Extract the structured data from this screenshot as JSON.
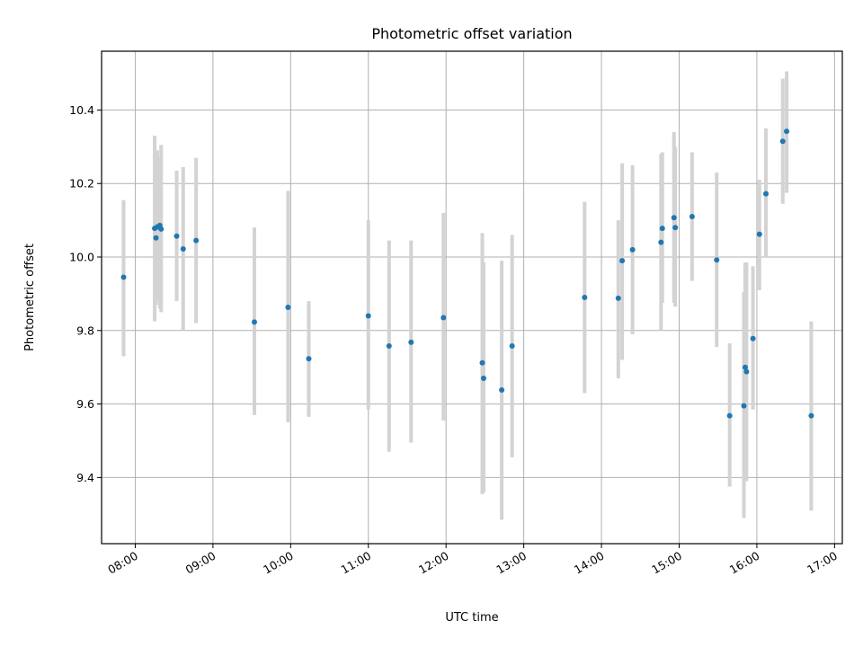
{
  "chart_data": {
    "type": "scatter",
    "title": "Photometric offset variation",
    "xlabel": "UTC time",
    "ylabel": "Photometric offset",
    "xlim": [
      "07:34",
      "17:06"
    ],
    "ylim": [
      9.22,
      10.56
    ],
    "x_ticks": [
      "08:00",
      "09:00",
      "10:00",
      "11:00",
      "12:00",
      "13:00",
      "14:00",
      "15:00",
      "16:00",
      "17:00"
    ],
    "y_ticks": [
      9.4,
      9.6,
      9.8,
      10.0,
      10.2,
      10.4
    ],
    "y_tick_labels": [
      "9.4",
      "9.6",
      "9.8",
      "10.0",
      "10.2",
      "10.4"
    ],
    "grid": true,
    "marker_color": "#1f77b4",
    "errorbar_color": "#d3d3d3",
    "points": [
      {
        "x": "07:51",
        "y": 9.945,
        "lo": 9.73,
        "hi": 10.155
      },
      {
        "x": "08:15",
        "y": 10.078,
        "lo": 9.825,
        "hi": 10.33
      },
      {
        "x": "08:16",
        "y": 10.052,
        "lo": 9.87,
        "hi": 10.235
      },
      {
        "x": "08:17",
        "y": 10.082,
        "lo": 9.88,
        "hi": 10.29
      },
      {
        "x": "08:19",
        "y": 10.086,
        "lo": 9.86,
        "hi": 10.27
      },
      {
        "x": "08:20",
        "y": 10.076,
        "lo": 9.85,
        "hi": 10.305
      },
      {
        "x": "08:32",
        "y": 10.057,
        "lo": 9.88,
        "hi": 10.235
      },
      {
        "x": "08:37",
        "y": 10.022,
        "lo": 9.8,
        "hi": 10.245
      },
      {
        "x": "08:47",
        "y": 10.045,
        "lo": 9.82,
        "hi": 10.27
      },
      {
        "x": "09:32",
        "y": 9.823,
        "lo": 9.57,
        "hi": 10.08
      },
      {
        "x": "09:58",
        "y": 9.863,
        "lo": 9.55,
        "hi": 10.18
      },
      {
        "x": "10:14",
        "y": 9.723,
        "lo": 9.565,
        "hi": 9.88
      },
      {
        "x": "11:00",
        "y": 9.84,
        "lo": 9.585,
        "hi": 10.1
      },
      {
        "x": "11:16",
        "y": 9.758,
        "lo": 9.47,
        "hi": 10.045
      },
      {
        "x": "11:33",
        "y": 9.768,
        "lo": 9.495,
        "hi": 10.045
      },
      {
        "x": "11:58",
        "y": 9.835,
        "lo": 9.555,
        "hi": 10.12
      },
      {
        "x": "12:28",
        "y": 9.712,
        "lo": 9.355,
        "hi": 10.065
      },
      {
        "x": "12:29",
        "y": 9.67,
        "lo": 9.36,
        "hi": 9.985
      },
      {
        "x": "12:43",
        "y": 9.638,
        "lo": 9.285,
        "hi": 9.99
      },
      {
        "x": "12:51",
        "y": 9.758,
        "lo": 9.455,
        "hi": 10.06
      },
      {
        "x": "13:47",
        "y": 9.89,
        "lo": 9.63,
        "hi": 10.15
      },
      {
        "x": "14:13",
        "y": 9.888,
        "lo": 9.67,
        "hi": 10.1
      },
      {
        "x": "14:16",
        "y": 9.99,
        "lo": 9.72,
        "hi": 10.255
      },
      {
        "x": "14:24",
        "y": 10.02,
        "lo": 9.79,
        "hi": 10.25
      },
      {
        "x": "14:46",
        "y": 10.04,
        "lo": 9.8,
        "hi": 10.28
      },
      {
        "x": "14:47",
        "y": 10.078,
        "lo": 9.875,
        "hi": 10.285
      },
      {
        "x": "14:56",
        "y": 10.107,
        "lo": 9.875,
        "hi": 10.34
      },
      {
        "x": "14:57",
        "y": 10.08,
        "lo": 9.865,
        "hi": 10.3
      },
      {
        "x": "15:10",
        "y": 10.11,
        "lo": 9.935,
        "hi": 10.285
      },
      {
        "x": "15:29",
        "y": 9.992,
        "lo": 9.755,
        "hi": 10.23
      },
      {
        "x": "15:39",
        "y": 9.568,
        "lo": 9.375,
        "hi": 9.765
      },
      {
        "x": "15:50",
        "y": 9.595,
        "lo": 9.29,
        "hi": 9.905
      },
      {
        "x": "15:51",
        "y": 9.7,
        "lo": 9.41,
        "hi": 9.985
      },
      {
        "x": "15:52",
        "y": 9.688,
        "lo": 9.39,
        "hi": 9.985
      },
      {
        "x": "15:57",
        "y": 9.778,
        "lo": 9.585,
        "hi": 9.975
      },
      {
        "x": "16:02",
        "y": 10.062,
        "lo": 9.91,
        "hi": 10.21
      },
      {
        "x": "16:07",
        "y": 10.172,
        "lo": 10.0,
        "hi": 10.35
      },
      {
        "x": "16:20",
        "y": 10.315,
        "lo": 10.145,
        "hi": 10.485
      },
      {
        "x": "16:23",
        "y": 10.342,
        "lo": 10.175,
        "hi": 10.505
      },
      {
        "x": "16:42",
        "y": 9.568,
        "lo": 9.31,
        "hi": 9.825
      }
    ]
  }
}
